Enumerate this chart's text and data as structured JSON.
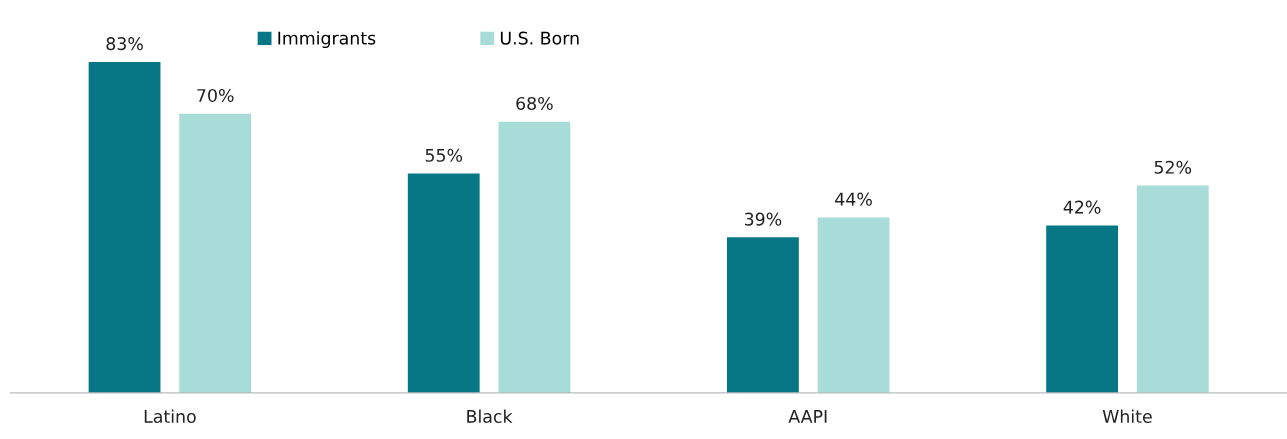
{
  "chart_data": {
    "type": "bar",
    "categories": [
      "Latino",
      "Black",
      "AAPI",
      "White"
    ],
    "series": [
      {
        "name": "Immigrants",
        "color": "#077786",
        "values": [
          83,
          55,
          39,
          42
        ],
        "value_labels": [
          "83%",
          "55%",
          "39%",
          "42%"
        ]
      },
      {
        "name": "U.S. Born",
        "color": "#a8dcd9",
        "values": [
          70,
          68,
          44,
          52
        ],
        "value_labels": [
          "70%",
          "68%",
          "44%",
          "52%"
        ]
      }
    ],
    "legend": "top",
    "grid": false
  }
}
